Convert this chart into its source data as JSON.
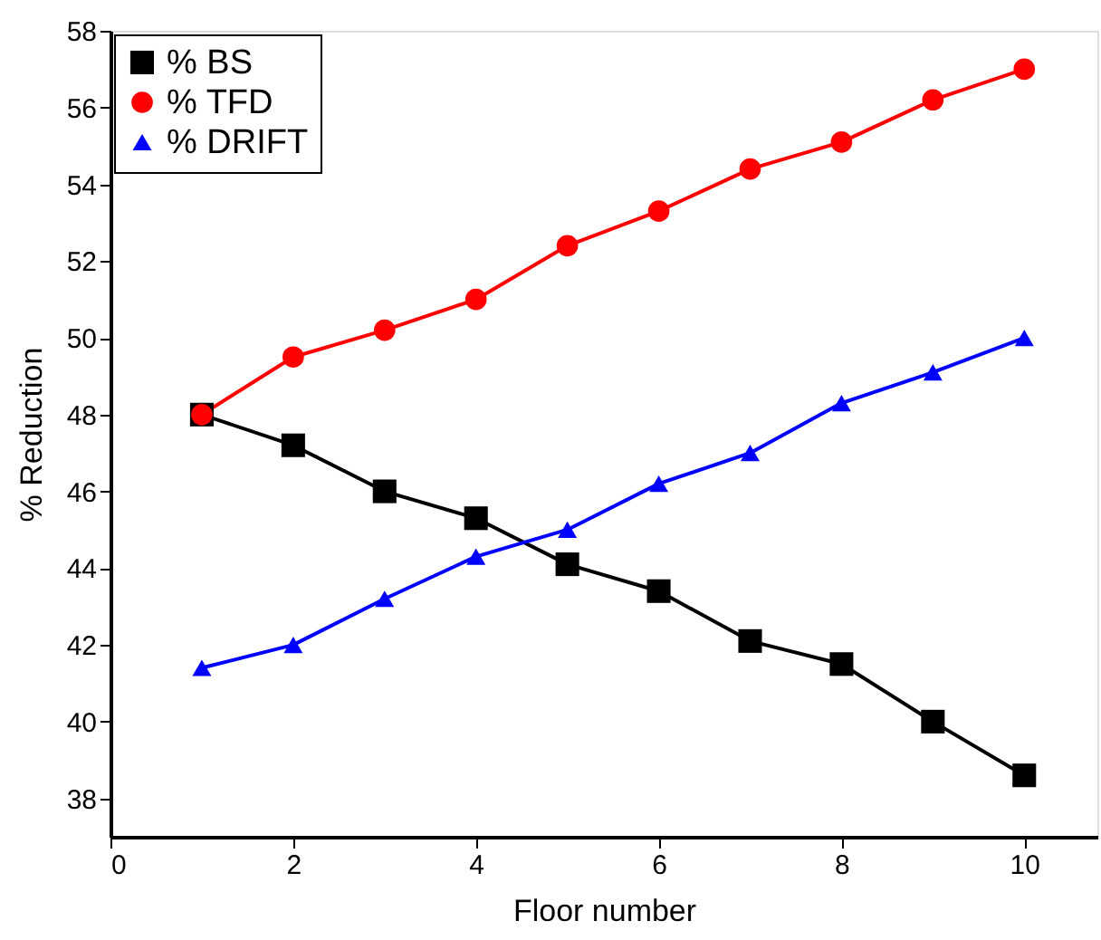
{
  "chart_data": {
    "type": "line",
    "xlabel": "Floor number",
    "ylabel": "% Reduction",
    "x": [
      1,
      2,
      3,
      4,
      5,
      6,
      7,
      8,
      9,
      10
    ],
    "series": [
      {
        "name": "% BS",
        "color": "#000000",
        "marker": "square",
        "values": [
          48,
          47.2,
          46,
          45.3,
          44.1,
          43.4,
          42.1,
          41.5,
          40,
          38.6
        ]
      },
      {
        "name": "% TFD",
        "color": "#ff0000",
        "marker": "circle",
        "values": [
          48,
          49.5,
          50.2,
          51,
          52.4,
          53.3,
          54.4,
          55.1,
          56.2,
          57
        ]
      },
      {
        "name": "% DRIFT",
        "color": "#0000ff",
        "marker": "triangle",
        "values": [
          41.4,
          42,
          43.2,
          44.3,
          45,
          46.2,
          47,
          48.3,
          49.1,
          50
        ]
      }
    ],
    "xlim": [
      0,
      10.8
    ],
    "xticks": [
      0,
      2,
      4,
      6,
      8,
      10
    ],
    "ylim": [
      37,
      58
    ],
    "yticks": [
      38,
      40,
      42,
      44,
      46,
      48,
      50,
      52,
      54,
      56,
      58
    ],
    "legend": "top left",
    "grid": false,
    "line_style": "solid"
  }
}
